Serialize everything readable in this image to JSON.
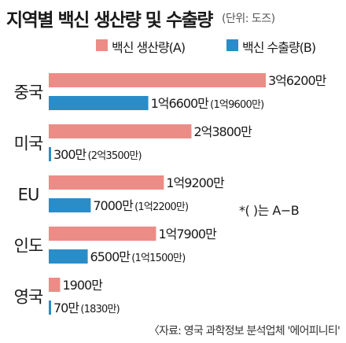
{
  "header": {
    "title": "지역별 백신 생산량 및 수출량",
    "unit": "(단위: 도즈)"
  },
  "legend": [
    {
      "label": "백신 생산량(A)",
      "color": "#ec8c86"
    },
    {
      "label": "백신 수출량(B)",
      "color": "#2a8dc8"
    }
  ],
  "note": "*(    )는 A−B",
  "source": "〈자료: 영국 과학정보 분석업체 '에어피니티'",
  "chart_data": {
    "type": "bar",
    "orientation": "horizontal",
    "unit": "만 도즈",
    "categories": [
      "중국",
      "미국",
      "EU",
      "인도",
      "영국"
    ],
    "series": [
      {
        "name": "백신 생산량(A)",
        "color": "#ec8c86",
        "values": [
          36200,
          23800,
          19200,
          17900,
          1900
        ],
        "labels": [
          "3억6200만",
          "2억3800만",
          "1억9200만",
          "1억7900만",
          "1900만"
        ]
      },
      {
        "name": "백신 수출량(B)",
        "color": "#2a8dc8",
        "values": [
          16600,
          300,
          7000,
          6500,
          70
        ],
        "labels": [
          "1억6600만",
          "300만",
          "7000만",
          "6500만",
          "70만"
        ],
        "diff_labels": [
          "(1억9600만)",
          "(2억3500만)",
          "(1억2200만)",
          "(1억1500만)",
          "(1830만)"
        ]
      }
    ]
  }
}
